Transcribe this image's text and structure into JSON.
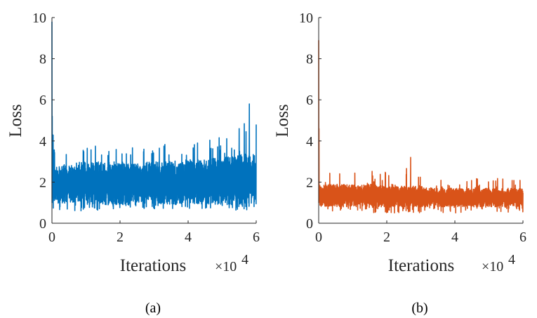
{
  "colors": {
    "series_a": "#0072BD",
    "series_b": "#D95319",
    "axis": "#262626"
  },
  "chart_data": [
    {
      "type": "line",
      "caption": "(a)",
      "xlabel": "Iterations",
      "x_exponent_base": "×10",
      "x_exponent_power": "4",
      "ylabel": "Loss",
      "xlim": [
        0,
        6
      ],
      "ylim": [
        0,
        10
      ],
      "xticks": [
        "0",
        "2",
        "4",
        "6"
      ],
      "yticks": [
        "0",
        "2",
        "4",
        "6",
        "8",
        "10"
      ],
      "color": "#0072BD",
      "series": [
        {
          "x": [
            0,
            0.02,
            0.04,
            0.06,
            0.1,
            0.2,
            0.5,
            1,
            1.5,
            2,
            2.5,
            3,
            3.5,
            4,
            4.5,
            5,
            5.5,
            5.8,
            6
          ],
          "y_peak": [
            9.8,
            5.2,
            4.0,
            3.8,
            3.7,
            3.6,
            3.7,
            3.8,
            3.9,
            3.8,
            3.7,
            3.8,
            3.9,
            4.0,
            4.2,
            4.3,
            4.6,
            5.8,
            4.8
          ],
          "y_low": [
            1.0,
            0.8,
            0.6,
            0.6,
            0.6,
            0.6,
            0.6,
            0.6,
            0.6,
            0.7,
            0.7,
            0.7,
            0.7,
            0.7,
            0.6,
            0.6,
            0.6,
            0.6,
            0.6
          ],
          "y_typical_high": [
            3.2,
            3.0,
            3.0,
            2.8,
            2.8,
            2.8,
            2.9,
            3.0,
            3.0,
            2.9,
            2.9,
            3.0,
            3.0,
            3.1,
            3.1,
            3.2,
            3.3,
            3.4,
            3.4
          ],
          "y_typical_low": [
            1.2,
            1.0,
            0.9,
            0.9,
            0.9,
            0.9,
            0.9,
            0.9,
            0.9,
            0.9,
            0.9,
            0.9,
            0.9,
            0.9,
            0.9,
            0.9,
            0.9,
            0.9,
            0.9
          ]
        }
      ]
    },
    {
      "type": "line",
      "caption": "(b)",
      "xlabel": "Iterations",
      "x_exponent_base": "×10",
      "x_exponent_power": "4",
      "ylabel": "Loss",
      "xlim": [
        0,
        6
      ],
      "ylim": [
        0,
        10
      ],
      "xticks": [
        "0",
        "2",
        "4",
        "6"
      ],
      "yticks": [
        "0",
        "2",
        "4",
        "6",
        "8",
        "10"
      ],
      "color": "#D95319",
      "series": [
        {
          "x": [
            0,
            0.02,
            0.04,
            0.06,
            0.1,
            0.2,
            0.5,
            1,
            1.5,
            2,
            2.5,
            2.7,
            3,
            3.5,
            4,
            4.5,
            5,
            5.5,
            6
          ],
          "y_peak": [
            8.9,
            4.6,
            3.2,
            2.9,
            2.7,
            2.5,
            2.4,
            2.6,
            2.7,
            2.5,
            2.6,
            3.2,
            2.5,
            2.4,
            2.3,
            2.3,
            2.2,
            2.2,
            2.1
          ],
          "y_low": [
            1.0,
            0.7,
            0.6,
            0.6,
            0.6,
            0.6,
            0.6,
            0.6,
            0.5,
            0.5,
            0.5,
            0.5,
            0.5,
            0.5,
            0.5,
            0.5,
            0.5,
            0.5,
            0.5
          ],
          "y_typical_high": [
            2.2,
            2.0,
            1.9,
            1.9,
            1.9,
            1.9,
            1.9,
            1.9,
            1.9,
            1.8,
            1.8,
            1.8,
            1.8,
            1.7,
            1.7,
            1.7,
            1.7,
            1.7,
            1.7
          ],
          "y_typical_low": [
            1.0,
            0.9,
            0.8,
            0.8,
            0.8,
            0.8,
            0.8,
            0.8,
            0.8,
            0.8,
            0.8,
            0.8,
            0.8,
            0.8,
            0.8,
            0.8,
            0.8,
            0.8,
            0.8
          ]
        }
      ]
    }
  ]
}
